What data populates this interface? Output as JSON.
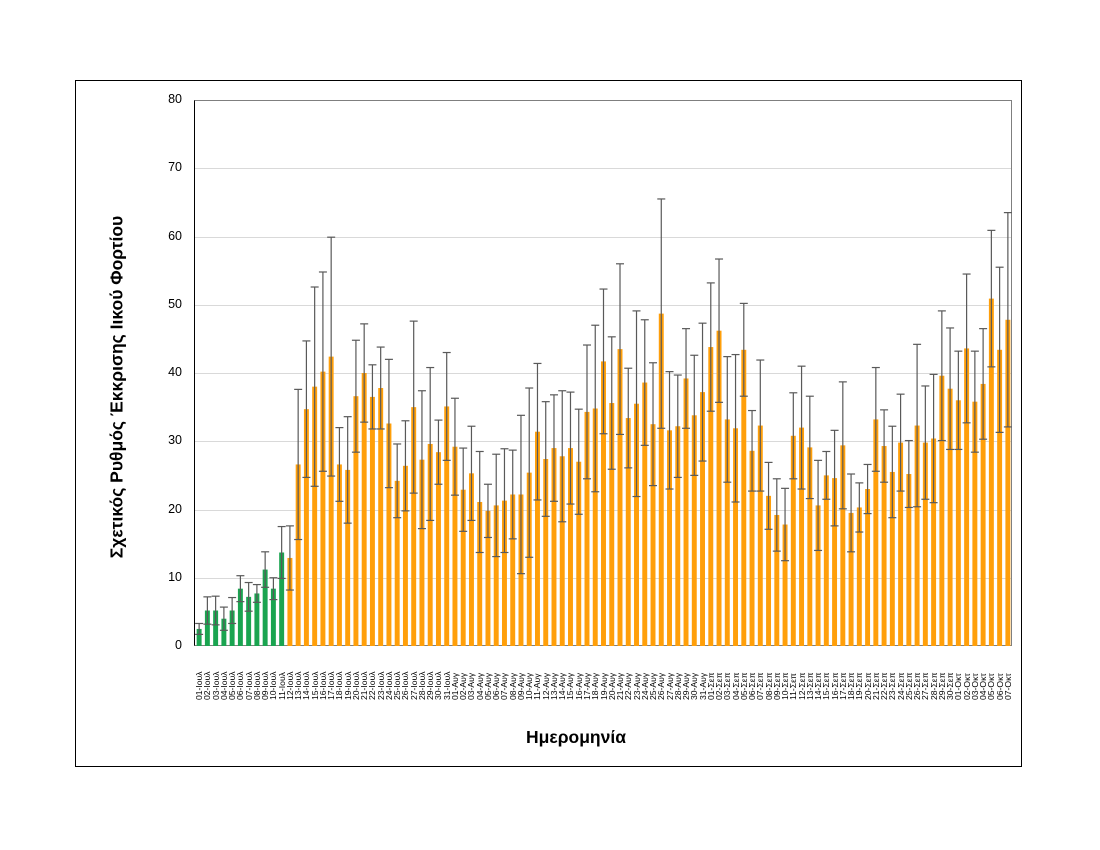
{
  "chart_data": {
    "type": "bar",
    "title": "",
    "xlabel": "Ημερομηνία",
    "ylabel": "Σχετικός Ρυθμός Έκκρισης Ιικού Φορτίου",
    "ylim": [
      0,
      80
    ],
    "yticks": [
      0,
      10,
      20,
      30,
      40,
      50,
      60,
      70,
      80
    ],
    "grid": "horizontal",
    "legend": "none",
    "colors": {
      "highlight": "#1aa450",
      "default": "#ff9f0a",
      "errorbar": "#595959"
    },
    "highlight_count": 11,
    "categories": [
      "01-Ιουλ",
      "02-Ιουλ",
      "03-Ιουλ",
      "04-Ιουλ",
      "05-Ιουλ",
      "06-Ιουλ",
      "07-Ιουλ",
      "08-Ιουλ",
      "09-Ιουλ",
      "10-Ιουλ",
      "11-Ιουλ",
      "12-Ιουλ",
      "13-Ιουλ",
      "14-Ιουλ",
      "15-Ιουλ",
      "16-Ιουλ",
      "17-Ιουλ",
      "18-Ιουλ",
      "19-Ιουλ",
      "20-Ιουλ",
      "21-Ιουλ",
      "22-Ιουλ",
      "23-Ιουλ",
      "24-Ιουλ",
      "25-Ιουλ",
      "26-Ιουλ",
      "27-Ιουλ",
      "28-Ιουλ",
      "29-Ιουλ",
      "30-Ιουλ",
      "31-Ιουλ",
      "01-Αυγ",
      "02-Αυγ",
      "03-Αυγ",
      "04-Αυγ",
      "05-Αυγ",
      "06-Αυγ",
      "07-Αυγ",
      "08-Αυγ",
      "09-Αυγ",
      "10-Αυγ",
      "11-Αυγ",
      "12-Αυγ",
      "13-Αυγ",
      "14-Αυγ",
      "15-Αυγ",
      "16-Αυγ",
      "17-Αυγ",
      "18-Αυγ",
      "19-Αυγ",
      "20-Αυγ",
      "21-Αυγ",
      "22-Αυγ",
      "23-Αυγ",
      "24-Αυγ",
      "25-Αυγ",
      "26-Αυγ",
      "27-Αυγ",
      "28-Αυγ",
      "29-Αυγ",
      "30-Αυγ",
      "31-Αυγ",
      "01-Σεπ",
      "02-Σεπ",
      "03-Σεπ",
      "04-Σεπ",
      "05-Σεπ",
      "06-Σεπ",
      "07-Σεπ",
      "08-Σεπ",
      "09-Σεπ",
      "10-Σεπ",
      "11-Σεπ",
      "12-Σεπ",
      "13-Σεπ",
      "14-Σεπ",
      "15-Σεπ",
      "16-Σεπ",
      "17-Σεπ",
      "18-Σεπ",
      "19-Σεπ",
      "20-Σεπ",
      "21-Σεπ",
      "22-Σεπ",
      "23-Σεπ",
      "24-Σεπ",
      "25-Σεπ",
      "26-Σεπ",
      "27-Σεπ",
      "28-Σεπ",
      "29-Σεπ",
      "30-Σεπ",
      "01-Οκτ",
      "02-Οκτ",
      "03-Οκτ",
      "04-Οκτ",
      "05-Οκτ",
      "06-Οκτ",
      "07-Οκτ"
    ],
    "values": [
      2.5,
      5.2,
      5.2,
      4.0,
      5.2,
      8.4,
      7.2,
      7.7,
      11.2,
      8.4,
      13.7,
      12.9,
      26.6,
      34.7,
      38.0,
      40.2,
      42.4,
      26.6,
      25.8,
      36.6,
      40.0,
      36.5,
      37.8,
      32.6,
      24.2,
      26.4,
      35.0,
      27.3,
      29.6,
      28.4,
      35.1,
      29.2,
      22.9,
      25.3,
      21.1,
      19.8,
      20.6,
      21.3,
      22.2,
      22.2,
      25.4,
      31.4,
      27.4,
      29.0,
      27.8,
      29.0,
      27.0,
      34.3,
      34.8,
      41.7,
      35.6,
      43.5,
      33.4,
      35.5,
      38.6,
      32.5,
      48.7,
      31.6,
      32.2,
      39.2,
      33.8,
      37.2,
      43.8,
      46.2,
      33.2,
      31.9,
      43.4,
      28.6,
      32.3,
      22.0,
      19.2,
      17.8,
      30.8,
      32.0,
      29.1,
      20.6,
      25.0,
      24.6,
      29.4,
      19.5,
      20.3,
      23.0,
      33.2,
      29.3,
      25.5,
      29.8,
      25.2,
      32.3,
      29.8,
      30.4,
      39.6,
      37.7,
      36.0,
      43.6,
      35.8,
      38.4,
      50.9,
      43.4,
      47.8
    ],
    "error": [
      0.8,
      2.0,
      2.1,
      1.7,
      1.9,
      1.9,
      2.1,
      1.3,
      2.6,
      1.6,
      3.8,
      4.7,
      11.0,
      10.0,
      14.6,
      14.6,
      17.5,
      5.4,
      7.8,
      8.2,
      7.2,
      4.7,
      6.0,
      9.4,
      5.4,
      6.6,
      12.6,
      10.1,
      11.2,
      4.7,
      7.9,
      7.1,
      6.1,
      6.9,
      7.4,
      3.9,
      7.5,
      7.6,
      6.5,
      11.6,
      12.4,
      10.0,
      8.4,
      7.8,
      9.6,
      8.2,
      7.7,
      9.8,
      12.2,
      10.6,
      9.7,
      12.5,
      7.3,
      13.6,
      9.2,
      9.0,
      16.8,
      8.6,
      7.5,
      7.3,
      8.8,
      10.1,
      9.4,
      10.5,
      9.2,
      10.8,
      6.8,
      5.9,
      9.6,
      4.9,
      5.3,
      5.3,
      6.3,
      9.0,
      7.5,
      6.6,
      3.5,
      7.0,
      9.3,
      5.7,
      3.6,
      3.6,
      7.6,
      5.3,
      6.7,
      7.1,
      4.9,
      11.9,
      8.3,
      9.4,
      9.5,
      8.9,
      7.2,
      10.9,
      7.4,
      8.1,
      10.0,
      12.1,
      15.7
    ]
  },
  "axis": {
    "ytick_labels": [
      "0",
      "10",
      "20",
      "30",
      "40",
      "50",
      "60",
      "70",
      "80"
    ],
    "ylabel": "Σχετικός Ρυθμός Έκκρισης Ιικού Φορτίου",
    "xlabel": "Ημερομηνία"
  }
}
